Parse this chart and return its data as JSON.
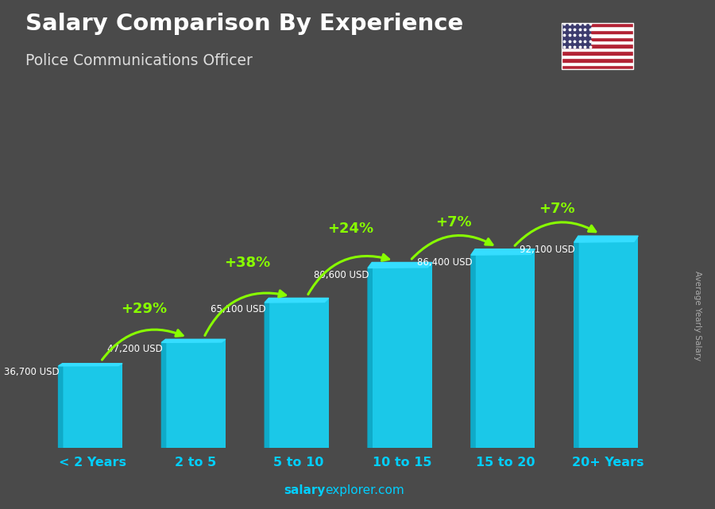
{
  "title": "Salary Comparison By Experience",
  "subtitle": "Police Communications Officer",
  "ylabel": "Average Yearly Salary",
  "categories": [
    "< 2 Years",
    "2 to 5",
    "5 to 10",
    "10 to 15",
    "15 to 20",
    "20+ Years"
  ],
  "values": [
    36700,
    47200,
    65100,
    80600,
    86400,
    92100
  ],
  "value_labels": [
    "36,700 USD",
    "47,200 USD",
    "65,100 USD",
    "80,600 USD",
    "86,400 USD",
    "92,100 USD"
  ],
  "pct_labels": [
    "+29%",
    "+38%",
    "+24%",
    "+7%",
    "+7%"
  ],
  "bar_color_main": "#1BC8E8",
  "bar_color_light": "#35DDFF",
  "bar_color_dark": "#0FAAC8",
  "pct_color": "#88FF00",
  "label_color": "#FFFFFF",
  "title_color": "#FFFFFF",
  "subtitle_color": "#DDDDDD",
  "bg_color": "#4A4A4A",
  "footer_color": "#00CFFF",
  "ylabel_color": "#AAAAAA",
  "xlabel_color": "#00CFFF",
  "ylim": [
    0,
    115000
  ],
  "bar_width": 0.58
}
